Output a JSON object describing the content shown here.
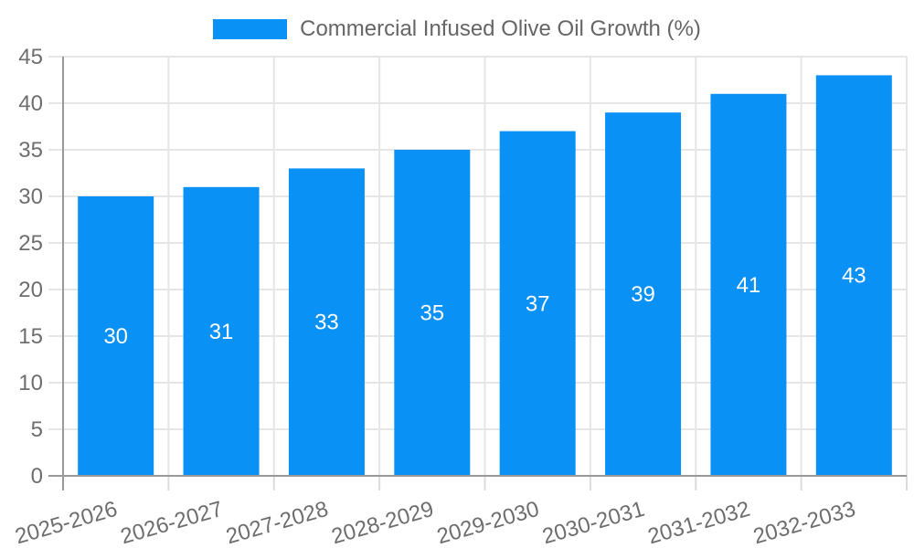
{
  "chart_data": {
    "type": "bar",
    "title": "Commercial Infused Olive Oil Growth (%)",
    "legend": {
      "position": "top",
      "label": "Commercial Infused Olive Oil Growth (%)"
    },
    "categories": [
      "2025-2026",
      "2026-2027",
      "2027-2028",
      "2028-2029",
      "2029-2030",
      "2030-2031",
      "2031-2032",
      "2032-2033"
    ],
    "series": [
      {
        "name": "Commercial Infused Olive Oil Growth (%)",
        "values": [
          30,
          31,
          33,
          35,
          37,
          39,
          41,
          43
        ]
      }
    ],
    "xlabel": "",
    "ylabel": "",
    "ylim": [
      0,
      45
    ],
    "yticks": [
      0,
      5,
      10,
      15,
      20,
      25,
      30,
      35,
      40,
      45
    ],
    "x_tick_rotation_deg": -16,
    "grid": true,
    "bar_value_labels_shown": true,
    "colors": {
      "bar": "#0A91F5",
      "bar_label": "#FFFFFF",
      "grid": "#E6E6E6",
      "tick": "#DCDCDC",
      "axis": "#999999",
      "tick_label": "#6E6E6E",
      "legend_text": "#666666",
      "background": "#FFFFFF"
    }
  }
}
